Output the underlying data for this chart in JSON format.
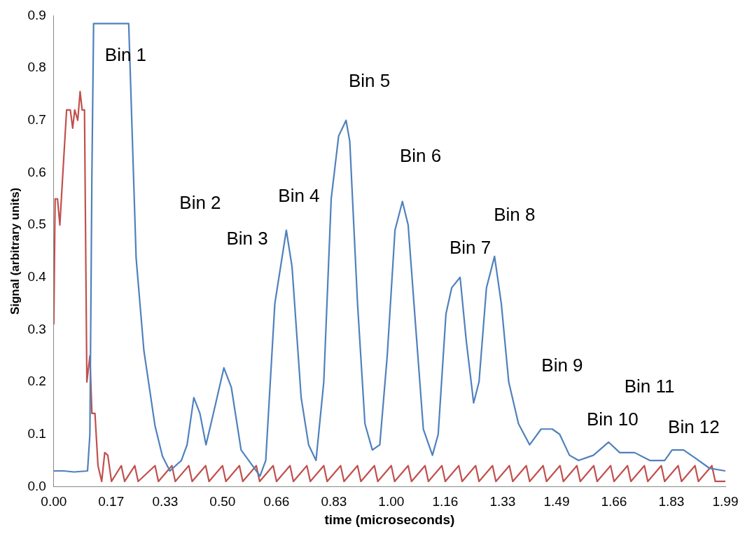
{
  "chart_data": {
    "type": "line",
    "xlabel": "time (microseconds)",
    "ylabel": "Signal (arbitrary units)",
    "xlim": [
      0,
      1.99
    ],
    "xticks": [
      {
        "value": 0,
        "label": "0.00"
      },
      0.17,
      0.33,
      {
        "value": 0.5,
        "label": "0.50"
      },
      0.66,
      0.83,
      {
        "value": 1,
        "label": "1.00"
      },
      1.16,
      1.33,
      1.49,
      1.66,
      1.83,
      1.99
    ],
    "ylim": [
      0,
      0.9
    ],
    "yticks": [
      {
        "value": 0,
        "label": "0.0"
      },
      0.1,
      0.2,
      0.3,
      0.4,
      0.5,
      0.6,
      0.7,
      0.8,
      0.9
    ],
    "grid": false,
    "legend": false,
    "marker": "none",
    "line_style": "solid",
    "series": [
      {
        "color": "#4f81bd",
        "x": [
          0,
          0.03,
          0.06,
          0.1,
          0.107,
          0.113,
          0.118,
          0.15,
          0.2,
          0.222,
          0.244,
          0.267,
          0.3,
          0.322,
          0.344,
          0.378,
          0.395,
          0.415,
          0.433,
          0.451,
          0.473,
          0.504,
          0.526,
          0.555,
          0.589,
          0.611,
          0.628,
          0.655,
          0.689,
          0.706,
          0.733,
          0.755,
          0.777,
          0.8,
          0.822,
          0.844,
          0.866,
          0.877,
          0.9,
          0.922,
          0.944,
          0.966,
          0.988,
          1.011,
          1.033,
          1.05,
          1.073,
          1.095,
          1.122,
          1.139,
          1.162,
          1.179,
          1.204,
          1.222,
          1.244,
          1.26,
          1.282,
          1.306,
          1.326,
          1.348,
          1.377,
          1.41,
          1.444,
          1.477,
          1.499,
          1.528,
          1.555,
          1.599,
          1.644,
          1.677,
          1.721,
          1.766,
          1.81,
          1.832,
          1.866,
          1.9,
          1.943,
          1.99
        ],
        "values": [
          0.03,
          0.03,
          0.028,
          0.03,
          0.1,
          0.6,
          0.885,
          0.885,
          0.885,
          0.885,
          0.437,
          0.26,
          0.116,
          0.058,
          0.03,
          0.05,
          0.08,
          0.17,
          0.14,
          0.08,
          0.14,
          0.227,
          0.19,
          0.07,
          0.04,
          0.02,
          0.05,
          0.35,
          0.49,
          0.42,
          0.17,
          0.08,
          0.05,
          0.2,
          0.55,
          0.67,
          0.7,
          0.66,
          0.35,
          0.12,
          0.07,
          0.08,
          0.25,
          0.49,
          0.545,
          0.5,
          0.3,
          0.11,
          0.06,
          0.1,
          0.33,
          0.38,
          0.4,
          0.28,
          0.16,
          0.2,
          0.38,
          0.44,
          0.35,
          0.2,
          0.12,
          0.08,
          0.11,
          0.11,
          0.1,
          0.06,
          0.05,
          0.06,
          0.085,
          0.065,
          0.065,
          0.05,
          0.05,
          0.07,
          0.07,
          0.055,
          0.035,
          0.03
        ]
      },
      {
        "color": "#c0504d",
        "x": [
          0,
          0.004,
          0.011,
          0.018,
          0.027,
          0.038,
          0.049,
          0.056,
          0.062,
          0.071,
          0.078,
          0.084,
          0.091,
          0.098,
          0.107,
          0.113,
          0.122,
          0.131,
          0.142,
          0.151,
          0.16,
          0.171,
          0.2,
          0.21,
          0.24,
          0.25,
          0.3,
          0.31,
          0.35,
          0.36,
          0.4,
          0.41,
          0.45,
          0.46,
          0.5,
          0.51,
          0.55,
          0.56,
          0.6,
          0.61,
          0.65,
          0.66,
          0.7,
          0.71,
          0.75,
          0.76,
          0.8,
          0.81,
          0.85,
          0.86,
          0.9,
          0.91,
          0.95,
          0.96,
          1.0,
          1.01,
          1.05,
          1.06,
          1.1,
          1.11,
          1.15,
          1.16,
          1.2,
          1.21,
          1.25,
          1.26,
          1.3,
          1.31,
          1.35,
          1.36,
          1.4,
          1.41,
          1.45,
          1.46,
          1.5,
          1.51,
          1.55,
          1.56,
          1.6,
          1.61,
          1.65,
          1.66,
          1.7,
          1.71,
          1.75,
          1.76,
          1.8,
          1.81,
          1.85,
          1.86,
          1.9,
          1.91,
          1.95,
          1.96,
          1.99
        ],
        "values": [
          0.31,
          0.55,
          0.55,
          0.5,
          0.6,
          0.72,
          0.72,
          0.685,
          0.72,
          0.7,
          0.755,
          0.72,
          0.72,
          0.2,
          0.25,
          0.14,
          0.14,
          0.04,
          0.01,
          0.065,
          0.06,
          0.01,
          0.04,
          0.01,
          0.04,
          0.01,
          0.04,
          0.01,
          0.04,
          0.01,
          0.04,
          0.01,
          0.04,
          0.01,
          0.04,
          0.01,
          0.04,
          0.01,
          0.04,
          0.01,
          0.04,
          0.01,
          0.04,
          0.01,
          0.04,
          0.01,
          0.04,
          0.01,
          0.04,
          0.01,
          0.04,
          0.01,
          0.04,
          0.01,
          0.04,
          0.01,
          0.04,
          0.01,
          0.04,
          0.01,
          0.04,
          0.01,
          0.04,
          0.01,
          0.04,
          0.01,
          0.04,
          0.01,
          0.04,
          0.01,
          0.04,
          0.01,
          0.04,
          0.01,
          0.04,
          0.01,
          0.04,
          0.01,
          0.04,
          0.01,
          0.04,
          0.01,
          0.04,
          0.01,
          0.04,
          0.01,
          0.04,
          0.01,
          0.04,
          0.01,
          0.04,
          0.01,
          0.04,
          0.01,
          0.01
        ]
      }
    ],
    "annotations": [
      "Bin 1",
      "Bin 2",
      "Bin 3",
      "Bin 4",
      "Bin 5",
      "Bin 6",
      "Bin 7",
      "Bin 8",
      "Bin 9",
      "Bin 10",
      "Bin 11",
      "Bin 12"
    ]
  }
}
